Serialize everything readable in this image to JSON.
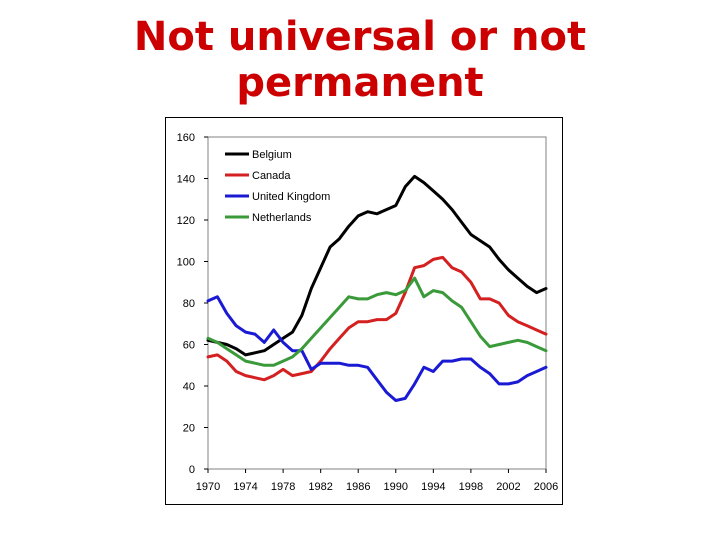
{
  "slide": {
    "title_line1": "Not universal or not",
    "title_line2": "permanent"
  },
  "chart_data": {
    "type": "line",
    "title": "",
    "xlabel": "",
    "ylabel": "",
    "ylim": [
      0,
      160
    ],
    "xlim": [
      1970,
      2006
    ],
    "yticks": [
      0,
      20,
      40,
      60,
      80,
      100,
      120,
      140,
      160
    ],
    "xticks": [
      1970,
      1974,
      1978,
      1982,
      1986,
      1990,
      1994,
      1998,
      2002,
      2006
    ],
    "grid": false,
    "legend": "top-left",
    "series": [
      {
        "name": "Belgium",
        "color": "#000000",
        "x": [
          1970,
          1971,
          1972,
          1973,
          1974,
          1975,
          1976,
          1977,
          1978,
          1979,
          1980,
          1981,
          1982,
          1983,
          1984,
          1985,
          1986,
          1987,
          1988,
          1989,
          1990,
          1991,
          1992,
          1993,
          1994,
          1995,
          1996,
          1997,
          1998,
          1999,
          2000,
          2001,
          2002,
          2003,
          2004,
          2005,
          2006
        ],
        "values": [
          62,
          61,
          60,
          58,
          55,
          56,
          57,
          60,
          63,
          66,
          74,
          87,
          97,
          107,
          111,
          117,
          122,
          124,
          123,
          125,
          127,
          136,
          141,
          138,
          134,
          130,
          125,
          119,
          113,
          110,
          107,
          101,
          96,
          92,
          88,
          85,
          87
        ]
      },
      {
        "name": "Canada",
        "color": "#d42020",
        "x": [
          1970,
          1971,
          1972,
          1973,
          1974,
          1975,
          1976,
          1977,
          1978,
          1979,
          1980,
          1981,
          1982,
          1983,
          1984,
          1985,
          1986,
          1987,
          1988,
          1989,
          1990,
          1991,
          1992,
          1993,
          1994,
          1995,
          1996,
          1997,
          1998,
          1999,
          2000,
          2001,
          2002,
          2003,
          2004,
          2005,
          2006
        ],
        "values": [
          54,
          55,
          52,
          47,
          45,
          44,
          43,
          45,
          48,
          45,
          46,
          47,
          52,
          58,
          63,
          68,
          71,
          71,
          72,
          72,
          75,
          85,
          97,
          98,
          101,
          102,
          97,
          95,
          90,
          82,
          82,
          80,
          74,
          71,
          69,
          67,
          65
        ]
      },
      {
        "name": "United Kingdom",
        "color": "#1a1ad4",
        "x": [
          1970,
          1971,
          1972,
          1973,
          1974,
          1975,
          1976,
          1977,
          1978,
          1979,
          1980,
          1981,
          1982,
          1983,
          1984,
          1985,
          1986,
          1987,
          1988,
          1989,
          1990,
          1991,
          1992,
          1993,
          1994,
          1995,
          1996,
          1997,
          1998,
          1999,
          2000,
          2001,
          2002,
          2003,
          2004,
          2005,
          2006
        ],
        "values": [
          81,
          83,
          75,
          69,
          66,
          65,
          61,
          67,
          61,
          57,
          57,
          48,
          51,
          51,
          51,
          50,
          50,
          49,
          43,
          37,
          33,
          34,
          41,
          49,
          47,
          52,
          52,
          53,
          53,
          49,
          46,
          41,
          41,
          42,
          45,
          47,
          49
        ]
      },
      {
        "name": "Netherlands",
        "color": "#3a9a3a",
        "x": [
          1970,
          1971,
          1972,
          1973,
          1974,
          1975,
          1976,
          1977,
          1978,
          1979,
          1980,
          1981,
          1982,
          1983,
          1984,
          1985,
          1986,
          1987,
          1988,
          1989,
          1990,
          1991,
          1992,
          1993,
          1994,
          1995,
          1996,
          1997,
          1998,
          1999,
          2000,
          2001,
          2002,
          2003,
          2004,
          2005,
          2006
        ],
        "values": [
          63,
          61,
          58,
          55,
          52,
          51,
          50,
          50,
          52,
          54,
          58,
          63,
          68,
          73,
          78,
          83,
          82,
          82,
          84,
          85,
          84,
          86,
          92,
          83,
          86,
          85,
          81,
          78,
          71,
          64,
          59,
          60,
          61,
          62,
          61,
          59,
          57
        ]
      }
    ]
  }
}
